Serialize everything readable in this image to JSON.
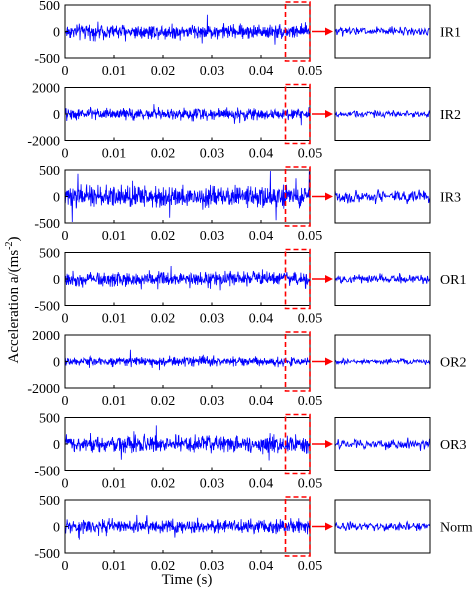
{
  "chart_data": {
    "type": "line",
    "xlabel": "Time (s)",
    "ylabel_main": "Acceleration a/(ms",
    "ylabel_sup": "-2",
    "ylabel_close": ")",
    "xlim": [
      0,
      0.05
    ],
    "xticks": [
      "0",
      "0.01",
      "0.02",
      "0.03",
      "0.04",
      "0.05"
    ],
    "zoom_window": [
      0.045,
      0.05
    ],
    "colors": {
      "signal": "#0000ff",
      "highlight": "#ff0000",
      "axes": "#000000"
    },
    "panels": [
      {
        "label": "IR1",
        "ylim": [
          -500,
          500
        ],
        "yticks": [
          "500",
          "0",
          "-500"
        ],
        "amplitude": 150
      },
      {
        "label": "IR2",
        "ylim": [
          -2000,
          2000
        ],
        "yticks": [
          "2000",
          "0",
          "-2000"
        ],
        "amplitude": 450
      },
      {
        "label": "IR3",
        "ylim": [
          -500,
          500
        ],
        "yticks": [
          "500",
          "0",
          "-500"
        ],
        "amplitude": 210
      },
      {
        "label": "OR1",
        "ylim": [
          -500,
          500
        ],
        "yticks": [
          "500",
          "0",
          "-500"
        ],
        "amplitude": 150
      },
      {
        "label": "OR2",
        "ylim": [
          -2000,
          2000
        ],
        "yticks": [
          "2000",
          "0",
          "-2000"
        ],
        "amplitude": 360
      },
      {
        "label": "OR3",
        "ylim": [
          -500,
          500
        ],
        "yticks": [
          "500",
          "0",
          "-500"
        ],
        "amplitude": 170
      },
      {
        "label": "Norm",
        "ylim": [
          -500,
          500
        ],
        "yticks": [
          "500",
          "0",
          "-500"
        ],
        "amplitude": 140
      }
    ]
  }
}
